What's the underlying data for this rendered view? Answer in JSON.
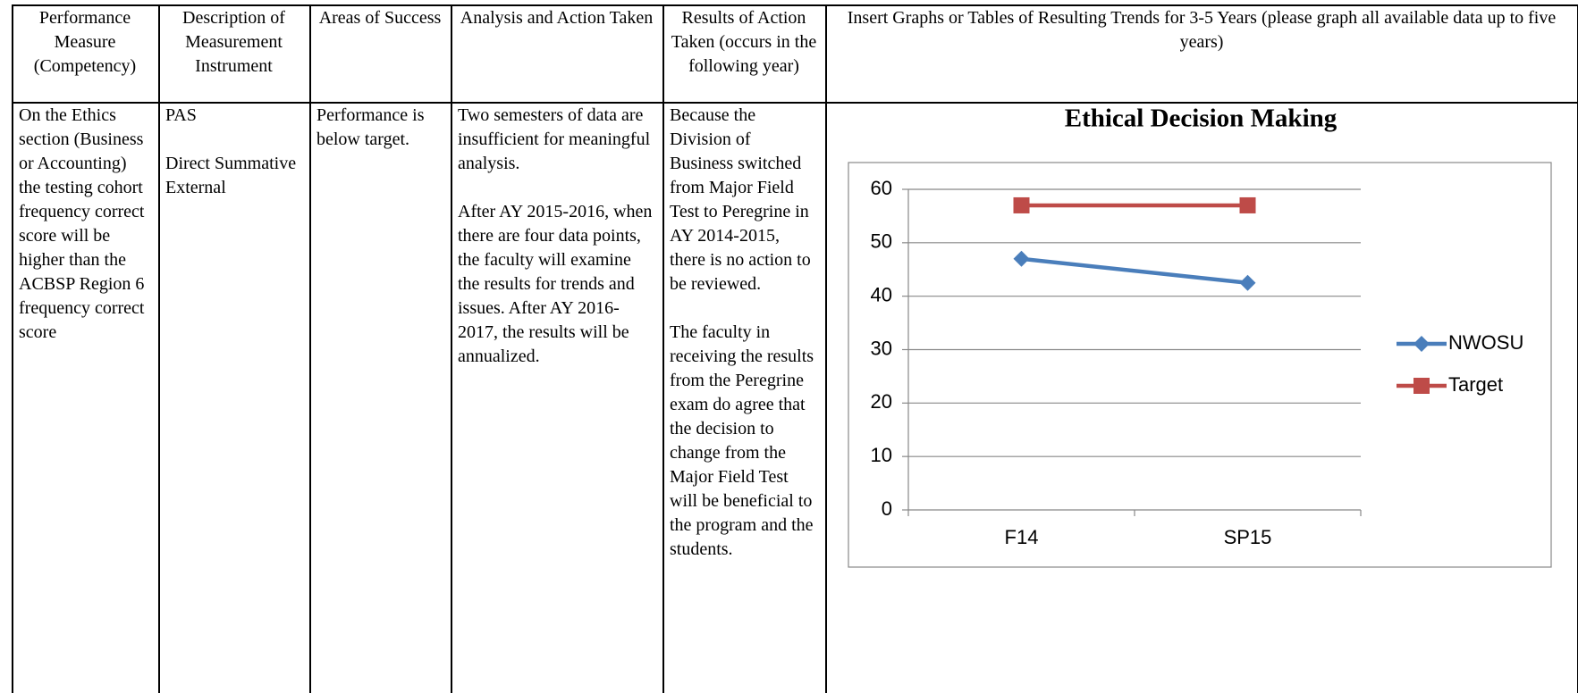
{
  "table": {
    "headers": [
      "Performance Measure (Competency)",
      "Description of Measurement Instrument",
      "Areas of Success",
      "Analysis and Action Taken",
      "Results of Action Taken (occurs in the following year)",
      "Insert Graphs or Tables of Resulting Trends for 3-5 Years (please graph all available data up to five years)"
    ],
    "rows": [
      [
        [
          "On the Ethics section (Business or Accounting) the testing cohort frequency correct score will be higher than the ACBSP Region 6 frequency correct score"
        ],
        [
          "PAS",
          "Direct Summative External"
        ],
        [
          "Performance is below target."
        ],
        [
          "Two semesters of data are insufficient for meaningful analysis.",
          "After AY 2015-2016, when there are four data points, the faculty will examine the results for trends and issues.  After AY 2016-2017, the results will be annualized."
        ],
        [
          "Because the Division of Business switched from Major Field Test to Peregrine in AY 2014-2015, there is no action to be reviewed.",
          "The faculty in receiving the results from the Peregrine exam do agree that the decision to change from the Major Field Test will be beneficial to the program and the students."
        ]
      ]
    ]
  },
  "chart_data": {
    "type": "line",
    "title": "Ethical Decision Making",
    "categories": [
      "F14",
      "SP15"
    ],
    "series": [
      {
        "name": "NWOSU",
        "color": "#4a7ebb",
        "marker": "diamond",
        "values": [
          47,
          42.5
        ]
      },
      {
        "name": "Target",
        "color": "#be4b48",
        "marker": "square",
        "values": [
          57,
          57
        ]
      }
    ],
    "ylim": [
      0,
      60
    ],
    "yticks": [
      0,
      10,
      20,
      30,
      40,
      50,
      60
    ],
    "grid": true,
    "legend": "right"
  }
}
